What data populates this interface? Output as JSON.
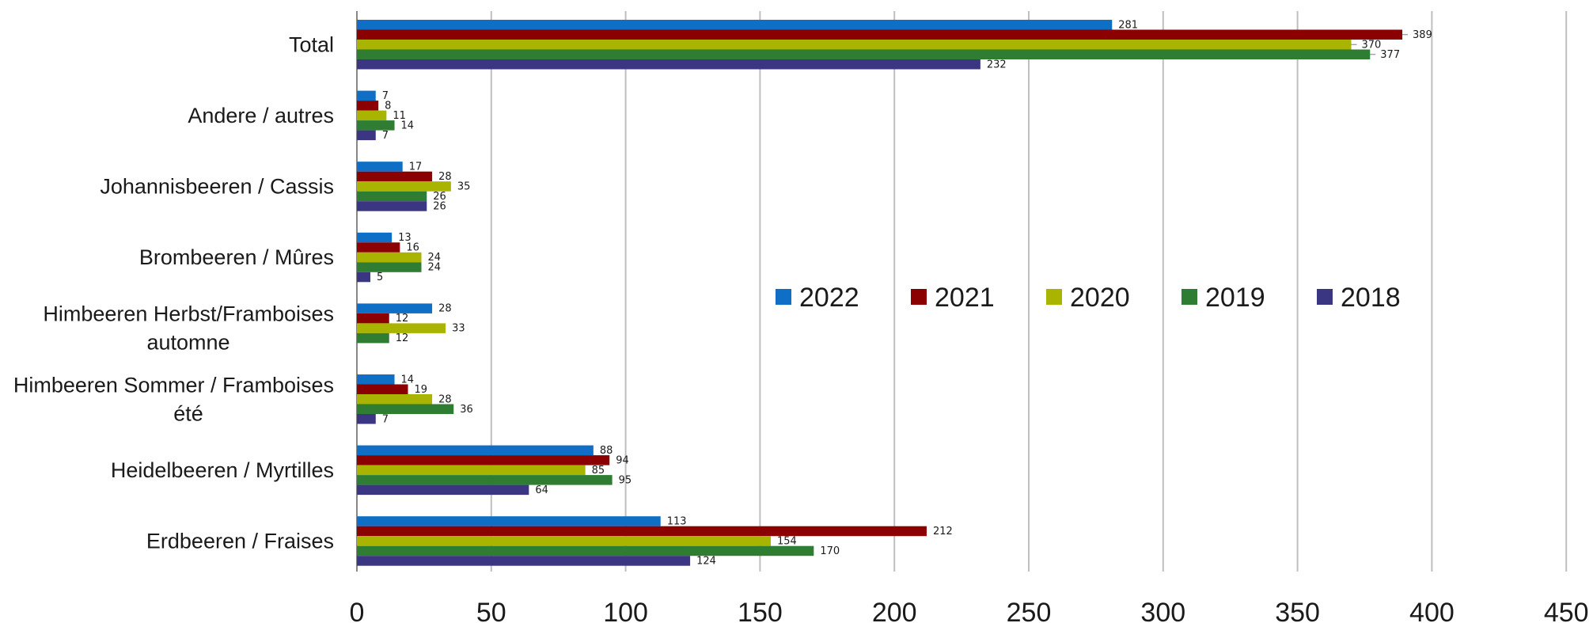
{
  "chart_data": {
    "type": "bar",
    "orientation": "horizontal",
    "categories": [
      [
        "Total"
      ],
      [
        "Andere / autres"
      ],
      [
        "Johannisbeeren / Cassis"
      ],
      [
        "Brombeeren / Mûres"
      ],
      [
        "Himbeeren Herbst/Framboises",
        "automne"
      ],
      [
        "Himbeeren Sommer / Framboises",
        "été"
      ],
      [
        "Heidelbeeren / Myrtilles"
      ],
      [
        "Erdbeeren / Fraises"
      ]
    ],
    "series": [
      {
        "name": "2022",
        "color": "#0f6fc6",
        "values": [
          281,
          7,
          17,
          13,
          28,
          14,
          88,
          113
        ]
      },
      {
        "name": "2021",
        "color": "#8b0000",
        "values": [
          389,
          8,
          28,
          16,
          12,
          19,
          94,
          212
        ]
      },
      {
        "name": "2020",
        "color": "#a9b400",
        "values": [
          370,
          11,
          35,
          24,
          33,
          28,
          85,
          154
        ]
      },
      {
        "name": "2019",
        "color": "#2e7d32",
        "values": [
          377,
          14,
          26,
          24,
          12,
          36,
          95,
          170
        ]
      },
      {
        "name": "2018",
        "color": "#3a3682",
        "values": [
          232,
          7,
          26,
          5,
          null,
          7,
          64,
          124
        ]
      }
    ],
    "xlim": [
      0,
      450
    ],
    "xticks": [
      0,
      50,
      100,
      150,
      200,
      250,
      300,
      350,
      400,
      450
    ],
    "grid": true,
    "legend_position": "center-right",
    "title": "",
    "xlabel": "",
    "ylabel": ""
  }
}
